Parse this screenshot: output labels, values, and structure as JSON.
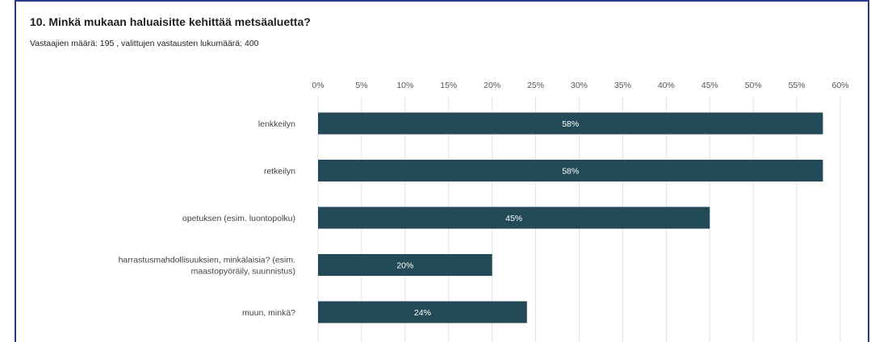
{
  "question": {
    "title": "10. Minkä mukaan haluaisitte kehittää metsäaluetta?",
    "subtitle": "Vastaajien määrä: 195 , valittujen vastausten lukumäärä: 400"
  },
  "colors": {
    "bar": "#234a57",
    "frame": "#2a3a8c"
  },
  "chart_data": {
    "type": "bar",
    "orientation": "horizontal",
    "categories": [
      [
        "lenkkeilyn"
      ],
      [
        "retkeilyn"
      ],
      [
        "opetuksen (esim. luontopolku)"
      ],
      [
        "harrastusmahdollisuuksien, minkälaisia? (esim.",
        "maastopyöräily, suunnistus)"
      ],
      [
        "muun, minkä?"
      ]
    ],
    "values": [
      58,
      58,
      45,
      20,
      24
    ],
    "value_labels": [
      "58%",
      "58%",
      "45%",
      "20%",
      "24%"
    ],
    "xlim": [
      0,
      60
    ],
    "ticks": [
      0,
      5,
      10,
      15,
      20,
      25,
      30,
      35,
      40,
      45,
      50,
      55,
      60
    ],
    "tick_labels": [
      "0%",
      "5%",
      "10%",
      "15%",
      "20%",
      "25%",
      "30%",
      "35%",
      "40%",
      "45%",
      "50%",
      "55%",
      "60%"
    ],
    "axis_position": "top",
    "grid": true,
    "legend": "none"
  }
}
